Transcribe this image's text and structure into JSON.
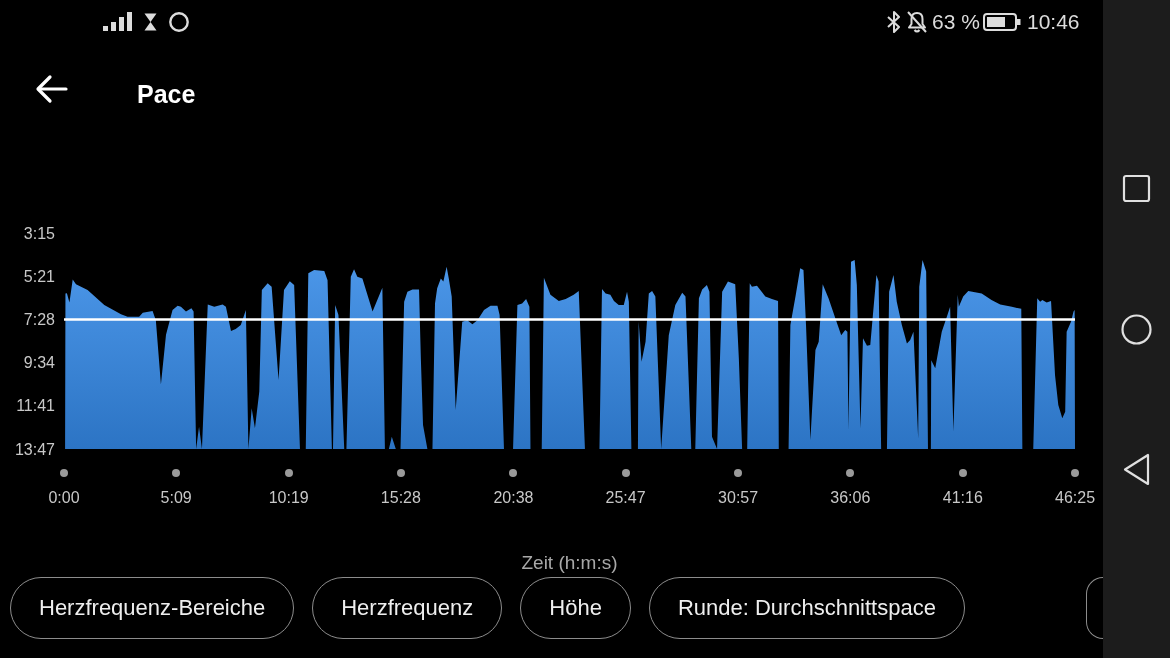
{
  "chart_data": {
    "type": "area",
    "title": "Pace",
    "xlabel": "Zeit (h:m:s)",
    "color": "#3489e6",
    "x": [
      3,
      4,
      8,
      15,
      24,
      33,
      65,
      111,
      157,
      175,
      207,
      217,
      244,
      253,
      267,
      281,
      299,
      313,
      322,
      336,
      351,
      357,
      364,
      372,
      380,
      396,
      414,
      437,
      446,
      460,
      473,
      487,
      501,
      508,
      517,
      526,
      538,
      545,
      561,
      572,
      591,
      606,
      622,
      634,
      650,
      666,
      673,
      689,
      717,
      726,
      738,
      741,
      747,
      756,
      772,
      778,
      790,
      799,
      808,
      822,
      850,
      877,
      884,
      895,
      903,
      914,
      927,
      937,
      946,
      960,
      978,
      983,
      989,
      1001,
      1015,
      1022,
      1028,
      1038,
      1045,
      1054,
      1060,
      1068,
      1079,
      1097,
      1111,
      1125,
      1139,
      1157,
      1175,
      1194,
      1200,
      1212,
      1237,
      1249,
      1262,
      1273,
      1282,
      1285,
      1316,
      1322,
      1340,
      1363,
      1382,
      1404,
      1418,
      1435,
      1475,
      1482,
      1492,
      1505,
      1515,
      1528,
      1542,
      1551,
      1556,
      1563,
      1576,
      1581,
      1583,
      1591,
      1602,
      1611,
      1620,
      1629,
      1645,
      1666,
      1684,
      1703,
      1712,
      1728,
      1739,
      1749,
      1758,
      1771,
      1778,
      1785,
      1799,
      1813,
      1829,
      1849,
      1859,
      1868,
      1882,
      1889,
      1895,
      1909,
      1932,
      1950,
      1967,
      1969,
      1996,
      2001,
      2015,
      2028,
      2037,
      2044,
      2056,
      2070,
      2079,
      2090,
      2106,
      2125,
      2141,
      2152,
      2158,
      2161,
      2168,
      2178,
      2184,
      2194,
      2201,
      2212,
      2221,
      2238,
      2244,
      2251,
      2267,
      2273,
      2285,
      2294,
      2308,
      2322,
      2331,
      2340,
      2353,
      2356,
      2365,
      2375,
      2380,
      2388,
      2389,
      2400,
      2418,
      2432,
      2441,
      2450,
      2462,
      2465,
      2477,
      2491,
      2528,
      2555,
      2579,
      2611,
      2637,
      2640,
      2670,
      2681,
      2689,
      2695,
      2707,
      2719,
      2730,
      2739,
      2750,
      2758,
      2762,
      2774,
      2781,
      2784,
      2785
    ],
    "values": [
      827,
      372,
      371,
      398,
      331,
      345,
      362,
      406,
      433,
      440,
      440,
      428,
      423,
      450,
      638,
      493,
      420,
      408,
      411,
      425,
      415,
      425,
      827,
      762,
      827,
      404,
      411,
      404,
      411,
      482,
      476,
      464,
      420,
      827,
      708,
      766,
      659,
      362,
      342,
      352,
      625,
      362,
      336,
      347,
      827,
      827,
      313,
      303,
      306,
      333,
      827,
      827,
      406,
      435,
      827,
      827,
      323,
      301,
      323,
      328,
      425,
      355,
      827,
      827,
      791,
      827,
      827,
      396,
      367,
      360,
      360,
      562,
      757,
      827,
      827,
      401,
      357,
      328,
      337,
      294,
      328,
      381,
      713,
      455,
      450,
      462,
      450,
      420,
      408,
      408,
      435,
      827,
      827,
      406,
      401,
      388,
      411,
      827,
      827,
      326,
      376,
      394,
      388,
      376,
      365,
      827,
      827,
      359,
      372,
      376,
      394,
      406,
      406,
      367,
      396,
      827,
      827,
      827,
      455,
      572,
      513,
      372,
      365,
      381,
      827,
      494,
      406,
      370,
      381,
      827,
      827,
      386,
      360,
      347,
      367,
      791,
      827,
      367,
      337,
      345,
      562,
      827,
      827,
      342,
      352,
      349,
      381,
      388,
      394,
      827,
      827,
      464,
      381,
      298,
      303,
      464,
      801,
      537,
      513,
      345,
      386,
      445,
      494,
      479,
      484,
      771,
      279,
      274,
      347,
      767,
      503,
      525,
      523,
      318,
      337,
      827,
      827,
      367,
      318,
      396,
      464,
      518,
      508,
      484,
      796,
      352,
      274,
      308,
      827,
      827,
      567,
      591,
      484,
      440,
      411,
      776,
      376,
      411,
      381,
      365,
      372,
      391,
      404,
      411,
      417,
      827,
      827,
      386,
      396,
      391,
      398,
      394,
      611,
      698,
      737,
      718,
      484,
      455,
      425,
      420,
      827
    ],
    "xlim": [
      0,
      2785
    ],
    "xticks": [
      {
        "value": 0,
        "label": "0:00"
      },
      {
        "value": 309,
        "label": "5:09"
      },
      {
        "value": 619,
        "label": "10:19"
      },
      {
        "value": 928,
        "label": "15:28"
      },
      {
        "value": 1238,
        "label": "20:38"
      },
      {
        "value": 1547,
        "label": "25:47"
      },
      {
        "value": 1857,
        "label": "30:57"
      },
      {
        "value": 2166,
        "label": "36:06"
      },
      {
        "value": 2476,
        "label": "41:16"
      },
      {
        "value": 2785,
        "label": "46:25"
      }
    ],
    "ylim": [
      827,
      195
    ],
    "yticks": [
      {
        "value": 195,
        "label": "3:15"
      },
      {
        "value": 321,
        "label": "5:21"
      },
      {
        "value": 448,
        "label": "7:28"
      },
      {
        "value": 574,
        "label": "9:34"
      },
      {
        "value": 701,
        "label": "11:41"
      },
      {
        "value": 827,
        "label": "13:47"
      }
    ],
    "ref_lines": [
      {
        "axis": "y",
        "value": 446,
        "color": "#ffffff",
        "line_style": "solid"
      }
    ],
    "annotations": [
      "63 %",
      "10:46",
      "Herzfrequenz-Bereiche",
      "Herzfrequenz",
      "Höhe",
      "Runde: Durchschnittspace"
    ]
  }
}
